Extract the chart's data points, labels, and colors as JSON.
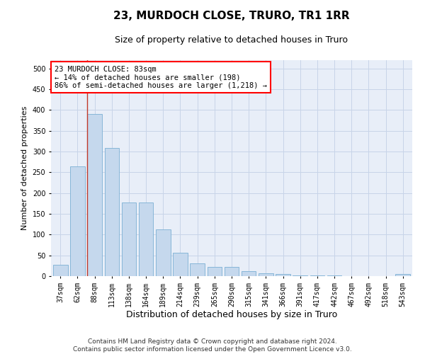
{
  "title": "23, MURDOCH CLOSE, TRURO, TR1 1RR",
  "subtitle": "Size of property relative to detached houses in Truro",
  "xlabel": "Distribution of detached houses by size in Truro",
  "ylabel": "Number of detached properties",
  "categories": [
    "37sqm",
    "62sqm",
    "88sqm",
    "113sqm",
    "138sqm",
    "164sqm",
    "189sqm",
    "214sqm",
    "239sqm",
    "265sqm",
    "290sqm",
    "315sqm",
    "341sqm",
    "366sqm",
    "391sqm",
    "417sqm",
    "442sqm",
    "467sqm",
    "492sqm",
    "518sqm",
    "543sqm"
  ],
  "values": [
    27,
    265,
    390,
    308,
    178,
    178,
    113,
    57,
    30,
    22,
    22,
    12,
    6,
    5,
    2,
    1,
    1,
    0,
    0,
    0,
    5
  ],
  "bar_color": "#c5d8ed",
  "bar_edge_color": "#7bafd4",
  "property_line_index": 2,
  "annotation_text": "23 MURDOCH CLOSE: 83sqm\n← 14% of detached houses are smaller (198)\n86% of semi-detached houses are larger (1,218) →",
  "annotation_box_color": "white",
  "annotation_box_edge_color": "red",
  "vline_color": "#c0392b",
  "ylim": [
    0,
    520
  ],
  "yticks": [
    0,
    50,
    100,
    150,
    200,
    250,
    300,
    350,
    400,
    450,
    500
  ],
  "grid_color": "#c8d4e8",
  "bg_color": "#e8eef8",
  "footer": "Contains HM Land Registry data © Crown copyright and database right 2024.\nContains public sector information licensed under the Open Government Licence v3.0.",
  "title_fontsize": 11,
  "subtitle_fontsize": 9,
  "xlabel_fontsize": 9,
  "ylabel_fontsize": 8,
  "footer_fontsize": 6.5,
  "tick_fontsize": 7,
  "annot_fontsize": 7.5
}
